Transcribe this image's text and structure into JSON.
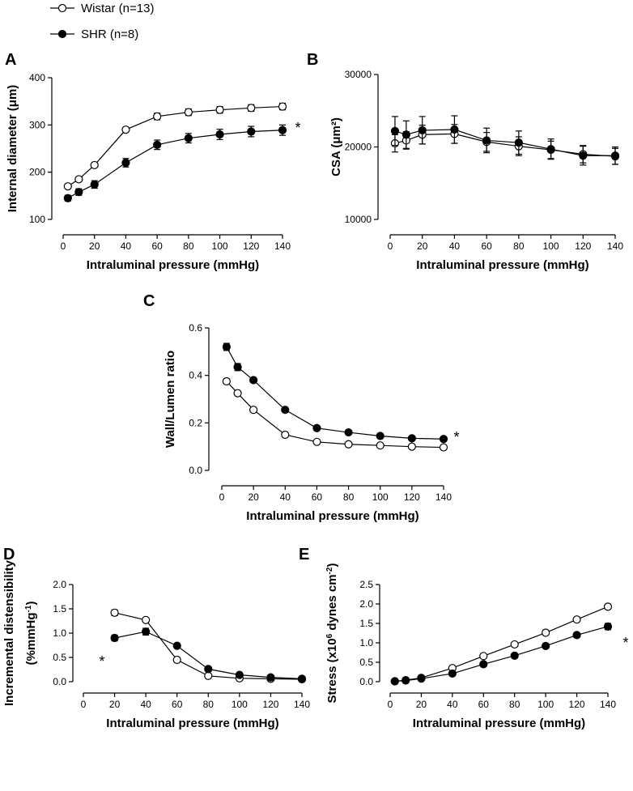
{
  "legend": {
    "wistar_label": "Wistar (n=13)",
    "shr_label": "SHR (n=8)"
  },
  "chart_data": [
    {
      "panel": "A",
      "type": "line",
      "xlabel": "Intraluminal pressure (mmHg)",
      "ylabel": "Internal diameter (μm)",
      "xlim": [
        0,
        140
      ],
      "ylim": [
        100,
        400
      ],
      "xticks": [
        0,
        20,
        40,
        60,
        80,
        100,
        120,
        140
      ],
      "yticks": [
        100,
        200,
        300,
        400
      ],
      "annotation": "*",
      "series": [
        {
          "name": "Wistar (n=13)",
          "x": [
            3,
            10,
            20,
            40,
            60,
            80,
            100,
            120,
            140
          ],
          "y": [
            170,
            185,
            215,
            290,
            318,
            327,
            332,
            336,
            339
          ],
          "err": [
            4,
            4,
            4,
            4,
            7,
            7,
            7,
            7,
            7
          ]
        },
        {
          "name": "SHR (n=8)",
          "x": [
            3,
            10,
            20,
            40,
            60,
            80,
            100,
            120,
            140
          ],
          "y": [
            145,
            158,
            174,
            220,
            258,
            272,
            280,
            286,
            289
          ],
          "err": [
            6,
            7,
            8,
            9,
            10,
            10,
            11,
            11,
            11
          ]
        }
      ]
    },
    {
      "panel": "B",
      "type": "line",
      "xlabel": "Intraluminal pressure (mmHg)",
      "ylabel": "CSA (μm²)",
      "xlim": [
        0,
        140
      ],
      "ylim": [
        10000,
        30000
      ],
      "xticks": [
        0,
        20,
        40,
        60,
        80,
        100,
        120,
        140
      ],
      "yticks": [
        10000,
        20000,
        30000
      ],
      "series": [
        {
          "name": "Wistar (n=13)",
          "x": [
            3,
            10,
            20,
            40,
            60,
            80,
            100,
            120,
            140
          ],
          "y": [
            20500,
            20900,
            21700,
            21800,
            20700,
            20100,
            19600,
            19000,
            18700
          ],
          "err": [
            1200,
            1200,
            1300,
            1300,
            1300,
            1300,
            1200,
            1200,
            1100
          ]
        },
        {
          "name": "SHR (n=8)",
          "x": [
            3,
            10,
            20,
            40,
            60,
            80,
            100,
            120,
            140
          ],
          "y": [
            22200,
            21700,
            22300,
            22400,
            20900,
            20600,
            19700,
            18800,
            18800
          ],
          "err": [
            2000,
            1900,
            1900,
            1900,
            1700,
            1600,
            1400,
            1300,
            1200
          ]
        }
      ]
    },
    {
      "panel": "C",
      "type": "line",
      "xlabel": "Intraluminal pressure (mmHg)",
      "ylabel": "Wall/Lumen ratio",
      "xlim": [
        0,
        140
      ],
      "ylim": [
        0,
        0.6
      ],
      "xticks": [
        0,
        20,
        40,
        60,
        80,
        100,
        120,
        140
      ],
      "yticks": [
        0.0,
        0.2,
        0.4,
        0.6
      ],
      "annotation": "*",
      "series": [
        {
          "name": "Wistar (n=13)",
          "x": [
            3,
            10,
            20,
            40,
            60,
            80,
            100,
            120,
            140
          ],
          "y": [
            0.375,
            0.325,
            0.255,
            0.15,
            0.12,
            0.11,
            0.105,
            0.1,
            0.097
          ],
          "err": [
            0,
            0,
            0,
            0,
            0,
            0,
            0,
            0,
            0
          ]
        },
        {
          "name": "SHR (n=8)",
          "x": [
            3,
            10,
            20,
            40,
            60,
            80,
            100,
            120,
            140
          ],
          "y": [
            0.52,
            0.435,
            0.38,
            0.255,
            0.178,
            0.16,
            0.145,
            0.135,
            0.132
          ],
          "err": [
            0.015,
            0.015,
            0,
            0,
            0,
            0,
            0,
            0,
            0
          ]
        }
      ]
    },
    {
      "panel": "D",
      "type": "line",
      "xlabel": "Intraluminal pressure (mmHg)",
      "ylabel": "Incremental distensibility",
      "ylabel2": "(%mmHg",
      "ylabel2_sup": "-1",
      "ylabel2_end": ")",
      "xlim": [
        0,
        140
      ],
      "ylim": [
        0,
        2.0
      ],
      "xticks": [
        0,
        20,
        40,
        60,
        80,
        100,
        120,
        140
      ],
      "yticks": [
        0.0,
        0.5,
        1.0,
        1.5,
        2.0
      ],
      "annotation": "*",
      "series": [
        {
          "name": "Wistar (n=13)",
          "x": [
            20,
            40,
            60,
            80,
            100,
            120,
            140
          ],
          "y": [
            1.42,
            1.27,
            0.45,
            0.12,
            0.07,
            0.06,
            0.05
          ],
          "err": [
            0.06,
            0,
            0,
            0,
            0,
            0,
            0
          ]
        },
        {
          "name": "SHR (n=8)",
          "x": [
            20,
            40,
            60,
            80,
            100,
            120,
            140
          ],
          "y": [
            0.9,
            1.03,
            0.74,
            0.26,
            0.14,
            0.09,
            0.06
          ],
          "err": [
            0.06,
            0.07,
            0,
            0,
            0,
            0,
            0
          ]
        }
      ]
    },
    {
      "panel": "E",
      "type": "line",
      "xlabel": "Intraluminal pressure (mmHg)",
      "ylabel": "Stress (x10",
      "ylabel_sup": "6",
      "ylabel_mid": " dynes cm",
      "ylabel_sup2": "-2",
      "ylabel_end": ")",
      "xlim": [
        0,
        140
      ],
      "ylim": [
        0,
        2.5
      ],
      "xticks": [
        0,
        20,
        40,
        60,
        80,
        100,
        120,
        140
      ],
      "yticks": [
        0.0,
        0.5,
        1.0,
        1.5,
        2.0,
        2.5
      ],
      "annotation": "*",
      "series": [
        {
          "name": "Wistar (n=13)",
          "x": [
            3,
            10,
            20,
            40,
            60,
            80,
            100,
            120,
            140
          ],
          "y": [
            0.01,
            0.04,
            0.1,
            0.35,
            0.66,
            0.96,
            1.26,
            1.6,
            1.93
          ],
          "err": [
            0,
            0,
            0,
            0,
            0,
            0,
            0,
            0.05,
            0.06
          ]
        },
        {
          "name": "SHR (n=8)",
          "x": [
            3,
            10,
            20,
            40,
            60,
            80,
            100,
            120,
            140
          ],
          "y": [
            0.01,
            0.03,
            0.08,
            0.21,
            0.45,
            0.67,
            0.92,
            1.2,
            1.42
          ],
          "err": [
            0,
            0,
            0,
            0,
            0,
            0,
            0,
            0.06,
            0.08
          ]
        }
      ]
    }
  ]
}
